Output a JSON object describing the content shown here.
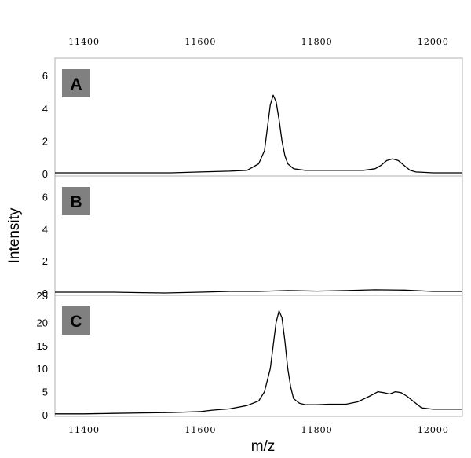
{
  "chart_data": {
    "type": "line",
    "xlabel": "m/z",
    "ylabel": "Intensity",
    "xlim": [
      11350,
      12050
    ],
    "x_ticks": [
      11400,
      11600,
      11800,
      12000
    ],
    "panels": [
      {
        "label": "A",
        "ylim": [
          0,
          7.5
        ],
        "y_ticks": [
          0,
          2,
          4,
          6
        ],
        "series": {
          "x": [
            11350,
            11400,
            11450,
            11500,
            11550,
            11600,
            11650,
            11680,
            11700,
            11710,
            11715,
            11720,
            11725,
            11730,
            11735,
            11740,
            11745,
            11750,
            11760,
            11780,
            11800,
            11850,
            11880,
            11900,
            11910,
            11920,
            11930,
            11940,
            11950,
            11960,
            11970,
            12000,
            12050
          ],
          "y": [
            0.05,
            0.05,
            0.05,
            0.05,
            0.05,
            0.1,
            0.15,
            0.2,
            0.6,
            1.4,
            2.8,
            4.2,
            4.8,
            4.4,
            3.3,
            2.0,
            1.1,
            0.6,
            0.3,
            0.2,
            0.2,
            0.2,
            0.2,
            0.3,
            0.5,
            0.8,
            0.9,
            0.8,
            0.5,
            0.2,
            0.1,
            0.05,
            0.05
          ]
        }
      },
      {
        "label": "B",
        "ylim": [
          0,
          7.5
        ],
        "y_ticks": [
          0,
          2,
          4,
          6
        ],
        "series": {
          "x": [
            11350,
            11450,
            11500,
            11540,
            11600,
            11650,
            11700,
            11750,
            11800,
            11850,
            11900,
            11950,
            12000,
            12050
          ],
          "y": [
            0.05,
            0.05,
            0.02,
            0.0,
            0.05,
            0.1,
            0.1,
            0.15,
            0.12,
            0.15,
            0.2,
            0.18,
            0.1,
            0.1
          ]
        }
      },
      {
        "label": "C",
        "ylim": [
          0,
          25
        ],
        "y_ticks": [
          0,
          5,
          10,
          15,
          20
        ],
        "y_ticks_partial": [
          "25"
        ],
        "series": {
          "x": [
            11350,
            11400,
            11450,
            11500,
            11550,
            11600,
            11620,
            11650,
            11680,
            11700,
            11710,
            11720,
            11725,
            11730,
            11735,
            11740,
            11745,
            11750,
            11755,
            11760,
            11770,
            11780,
            11800,
            11820,
            11850,
            11870,
            11890,
            11905,
            11915,
            11925,
            11935,
            11945,
            11955,
            11965,
            11980,
            12000,
            12050
          ],
          "y": [
            0.2,
            0.2,
            0.3,
            0.4,
            0.5,
            0.7,
            1.0,
            1.3,
            2.0,
            3.0,
            5.0,
            10.0,
            15.0,
            20.0,
            22.5,
            21.0,
            16.0,
            10.0,
            6.0,
            3.5,
            2.5,
            2.2,
            2.2,
            2.3,
            2.3,
            2.8,
            4.0,
            5.0,
            4.8,
            4.5,
            5.0,
            4.8,
            4.0,
            3.0,
            1.5,
            1.2,
            1.2
          ]
        }
      }
    ]
  }
}
